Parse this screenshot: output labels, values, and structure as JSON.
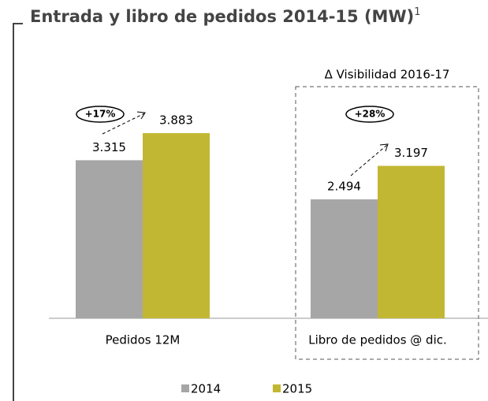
{
  "chart_data": {
    "type": "bar",
    "title": "Entrada y libro de pedidos 2014-15 (MW)",
    "title_superscript": "1",
    "categories": [
      "Pedidos 12M",
      "Libro de pedidos @ dic."
    ],
    "series": [
      {
        "name": "2014",
        "color": "#a6a6a6",
        "values": [
          3315,
          2494
        ],
        "value_labels": [
          "3.315",
          "2.494"
        ]
      },
      {
        "name": "2015",
        "color": "#c2b733",
        "values": [
          3883,
          3197
        ],
        "value_labels": [
          "3.883",
          "3.197"
        ]
      }
    ],
    "annotations": [
      "+17%",
      "+28%",
      "Δ Visibilidad 2016-17"
    ]
  }
}
